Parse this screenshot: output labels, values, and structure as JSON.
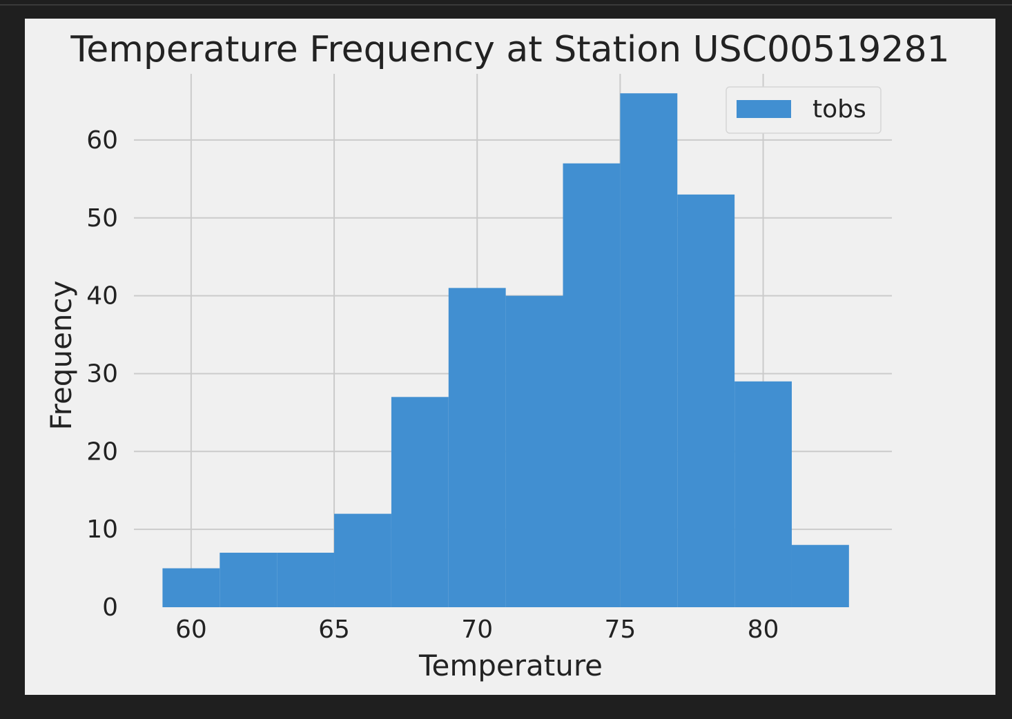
{
  "chart_data": {
    "type": "bar",
    "title": "Temperature Frequency at Station USC00519281",
    "xlabel": "Temperature",
    "ylabel": "Frequency",
    "xlim": [
      58,
      84.5
    ],
    "ylim": [
      0,
      68.5
    ],
    "xticks": [
      60,
      65,
      70,
      75,
      80
    ],
    "yticks": [
      0,
      10,
      20,
      30,
      40,
      50,
      60
    ],
    "grid": true,
    "legend_position": "top-right",
    "series": [
      {
        "name": "tobs",
        "color": "#418fd1",
        "bins": [
          {
            "x0": 59,
            "x1": 61,
            "value": 5
          },
          {
            "x0": 61,
            "x1": 63,
            "value": 7
          },
          {
            "x0": 63,
            "x1": 65,
            "value": 7
          },
          {
            "x0": 65,
            "x1": 67,
            "value": 12
          },
          {
            "x0": 67,
            "x1": 69,
            "value": 27
          },
          {
            "x0": 69,
            "x1": 71,
            "value": 41
          },
          {
            "x0": 71,
            "x1": 73,
            "value": 40
          },
          {
            "x0": 73,
            "x1": 75,
            "value": 57
          },
          {
            "x0": 75,
            "x1": 77,
            "value": 66
          },
          {
            "x0": 77,
            "x1": 79,
            "value": 53
          },
          {
            "x0": 79,
            "x1": 81,
            "value": 29
          },
          {
            "x0": 81,
            "x1": 83,
            "value": 8
          }
        ]
      }
    ]
  }
}
